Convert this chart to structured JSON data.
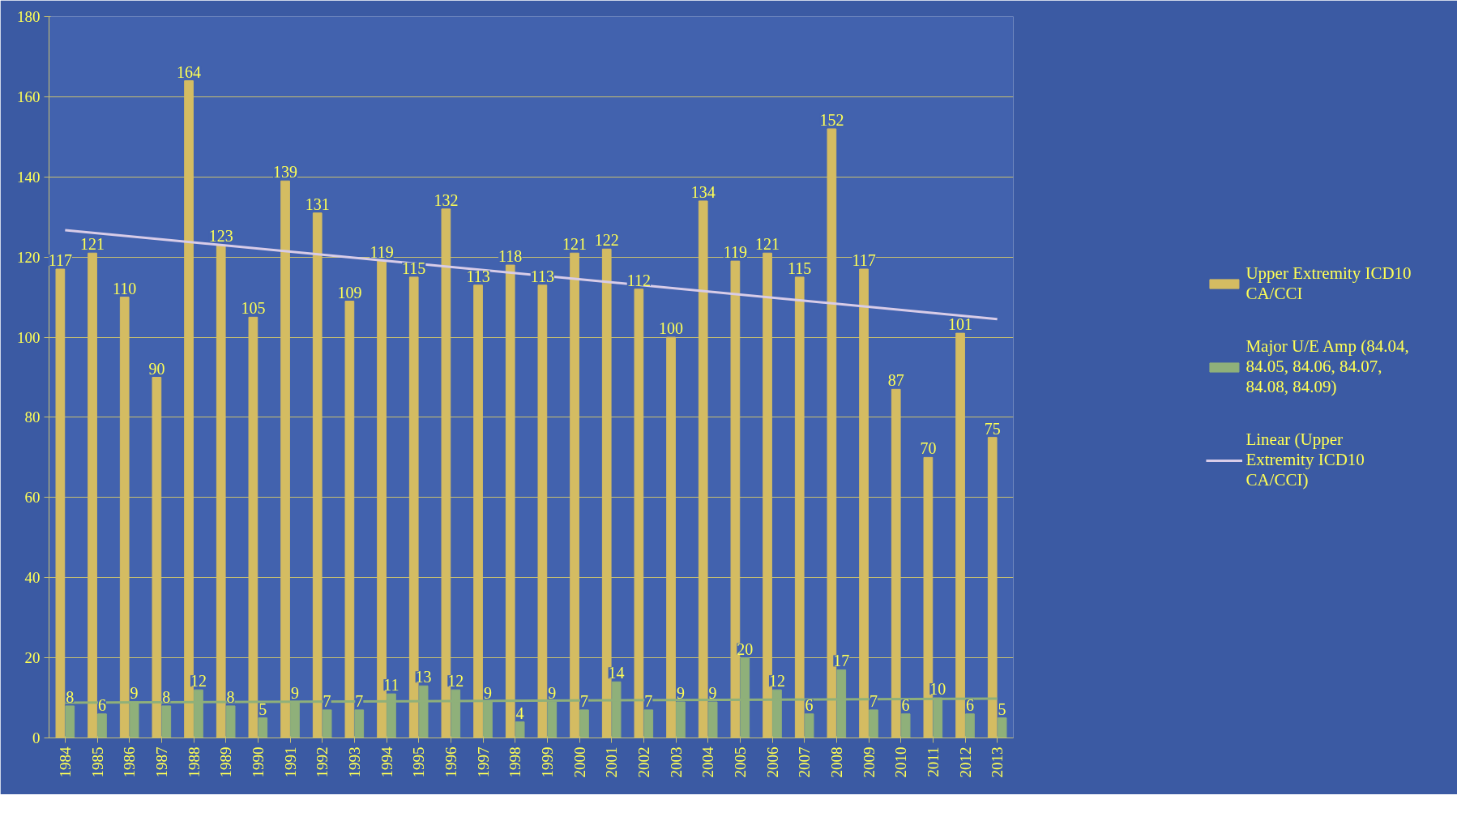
{
  "chart_data": {
    "type": "bar",
    "categories": [
      "1984",
      "1985",
      "1986",
      "1987",
      "1988",
      "1989",
      "1990",
      "1991",
      "1992",
      "1993",
      "1994",
      "1995",
      "1996",
      "1997",
      "1998",
      "1999",
      "2000",
      "2001",
      "2002",
      "2003",
      "2004",
      "2005",
      "2006",
      "2007",
      "2008",
      "2009",
      "2010",
      "2011",
      "2012",
      "2013"
    ],
    "series": [
      {
        "name": "Upper Extremity ICD10 CA/CCI",
        "color": "#d4bc62",
        "values": [
          117,
          121,
          110,
          90,
          164,
          123,
          105,
          139,
          131,
          109,
          119,
          115,
          132,
          113,
          118,
          113,
          121,
          122,
          112,
          100,
          134,
          119,
          121,
          115,
          152,
          117,
          87,
          70,
          101,
          75
        ],
        "value_labels": [
          "117",
          "121",
          "110",
          "90",
          "164",
          "123",
          "105",
          "139",
          "131",
          "109",
          "119",
          "115",
          "132",
          "113",
          "118",
          "113",
          "121",
          "122",
          "112",
          "100",
          "134",
          "119",
          "121",
          "115",
          "152",
          "117",
          "87",
          "70",
          "101",
          "75"
        ]
      },
      {
        "name": "Major U/E Amp (84.04, 84.05, 84.06, 84.07, 84.08, 84.09)",
        "color": "#8fb07a",
        "values": [
          8,
          6,
          9,
          8,
          12,
          8,
          5,
          9,
          7,
          7,
          11,
          13,
          12,
          9,
          4,
          9,
          7,
          14,
          7,
          9,
          9,
          20,
          12,
          6,
          17,
          7,
          6,
          10,
          6,
          5
        ],
        "value_labels": [
          "8",
          "6",
          "9",
          "8",
          "12",
          "8",
          "5",
          "9",
          "7",
          "7",
          "11",
          "13",
          "12",
          "9",
          "4",
          "9",
          "7",
          "14",
          "7",
          "9",
          "9",
          "20",
          "12",
          "6",
          "17",
          "7",
          "6",
          "10",
          "6",
          "5"
        ]
      },
      {
        "name": "Linear (Upper Extremity ICD10 CA/CCI)",
        "type": "line",
        "color": "#d8cce8",
        "values": [
          126.7,
          null,
          null,
          null,
          null,
          null,
          null,
          null,
          null,
          null,
          null,
          null,
          null,
          null,
          null,
          null,
          null,
          null,
          null,
          null,
          null,
          null,
          null,
          null,
          null,
          null,
          null,
          null,
          null,
          104.5
        ]
      },
      {
        "type": "line",
        "color": "#8fb07a",
        "values": [
          8.8,
          null,
          null,
          null,
          null,
          null,
          null,
          null,
          null,
          null,
          null,
          null,
          null,
          null,
          null,
          null,
          null,
          null,
          null,
          null,
          null,
          null,
          null,
          null,
          null,
          null,
          null,
          null,
          null,
          9.8
        ]
      }
    ],
    "ylim": [
      0,
      180
    ],
    "yticks": [
      0,
      20,
      40,
      60,
      80,
      100,
      120,
      140,
      160,
      180
    ],
    "grid": "y",
    "legend": "right"
  }
}
